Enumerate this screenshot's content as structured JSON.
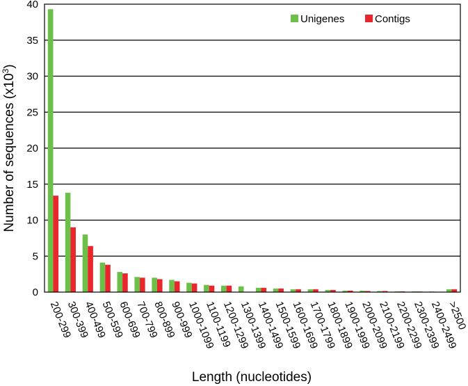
{
  "chart_data": {
    "type": "bar",
    "xlabel": "Length (nucleotides)",
    "ylabel_main": "Number of sequences (x10",
    "ylabel_sup": "3",
    "ylabel_end": ")",
    "ylim": [
      0,
      40
    ],
    "yticks": [
      0,
      5,
      10,
      15,
      20,
      25,
      30,
      35,
      40
    ],
    "grid": true,
    "legend_position": "top-right",
    "categories": [
      "200-299",
      "300-399",
      "400-499",
      "500-599",
      "600-699",
      "700-799",
      "800-899",
      "900-999",
      "1000-1099",
      "1100-1199",
      "1200-1299",
      "1300-1399",
      "1400-1499",
      "1500-1599",
      "1600-1699",
      "1700-1799",
      "1800-1899",
      "1900-1999",
      "2000-2099",
      "2100-2199",
      "2200-2299",
      "2300-2399",
      "2400-2499",
      ">2500"
    ],
    "series": [
      {
        "name": "Unigenes",
        "color": "#6cc04a",
        "values": [
          39.3,
          13.8,
          8.0,
          4.1,
          2.8,
          2.1,
          2.0,
          1.7,
          1.3,
          1.0,
          0.9,
          0.8,
          0.6,
          0.5,
          0.4,
          0.4,
          0.3,
          0.2,
          0.2,
          0.15,
          0.1,
          0.1,
          0.08,
          0.4
        ]
      },
      {
        "name": "Contigs",
        "color": "#e8262c",
        "values": [
          13.4,
          9.0,
          6.4,
          3.8,
          2.6,
          2.0,
          1.8,
          1.5,
          1.2,
          0.9,
          0.9,
          0.05,
          0.6,
          0.5,
          0.4,
          0.4,
          0.3,
          0.2,
          0.15,
          0.15,
          0.1,
          0.08,
          0.05,
          0.4
        ]
      }
    ]
  }
}
